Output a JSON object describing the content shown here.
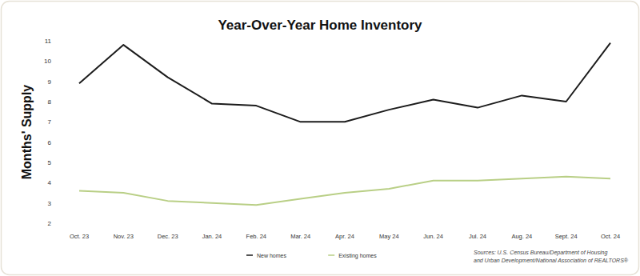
{
  "chart_data": {
    "type": "line",
    "title": "Year-Over-Year Home Inventory",
    "y_label": "Months' Supply",
    "categories": [
      "Oct. 23",
      "Nov. 23",
      "Dec. 23",
      "Jan. 24",
      "Feb. 24",
      "Mar. 24",
      "Apr. 24",
      "May 24",
      "Jun. 24",
      "Jul. 24",
      "Aug. 24",
      "Sept. 24",
      "Oct. 24"
    ],
    "series": [
      {
        "name": "New homes",
        "color": "#1c1c1c",
        "values": [
          8.9,
          10.8,
          9.2,
          7.9,
          7.8,
          7.0,
          7.0,
          7.6,
          8.1,
          7.7,
          8.3,
          8.0,
          10.9
        ]
      },
      {
        "name": "Existing homes",
        "color": "#b9cf86",
        "values": [
          3.6,
          3.5,
          3.1,
          3.0,
          2.9,
          3.2,
          3.5,
          3.7,
          4.1,
          4.1,
          4.2,
          4.3,
          4.2
        ]
      }
    ],
    "ylim": [
      2,
      11
    ],
    "yticks": [
      2,
      3,
      4,
      5,
      6,
      7,
      8,
      9,
      10,
      11
    ],
    "grid": false,
    "legend": "bottom",
    "source": [
      "Sources: U.S. Census Bureau/Department of Housing",
      "and Urban Development/National Association of REALTORS®"
    ]
  }
}
